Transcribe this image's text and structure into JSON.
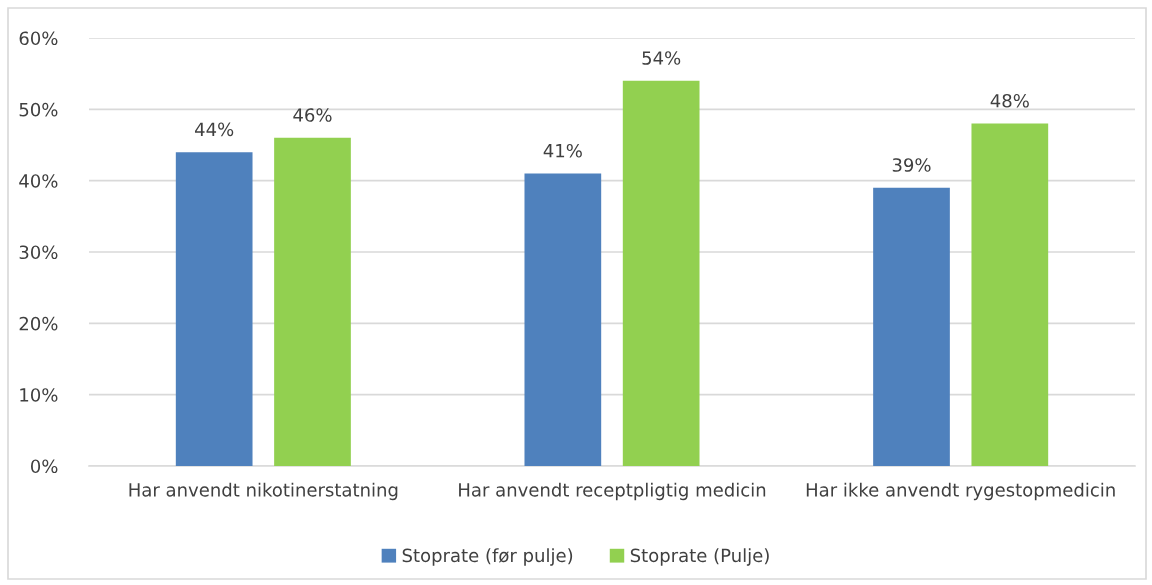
{
  "chart_data": {
    "type": "bar",
    "categories": [
      "Har anvendt nikotinerstatning",
      "Har anvendt receptpligtig medicin",
      "Har ikke anvendt rygestopmedicin"
    ],
    "series": [
      {
        "name": "Stoprate (før pulje)",
        "color": "#4f81bd",
        "values": [
          44,
          41,
          39
        ],
        "value_labels": [
          "44%",
          "41%",
          "39%"
        ]
      },
      {
        "name": "Stoprate (Pulje)",
        "color": "#92d050",
        "values": [
          46,
          54,
          48
        ],
        "value_labels": [
          "46%",
          "54%",
          "48%"
        ]
      }
    ],
    "ylim": [
      0,
      60
    ],
    "yticks": [
      {
        "value": 0,
        "label": "0%"
      },
      {
        "value": 10,
        "label": "10%"
      },
      {
        "value": 20,
        "label": "20%"
      },
      {
        "value": 30,
        "label": "30%"
      },
      {
        "value": 40,
        "label": "40%"
      },
      {
        "value": 50,
        "label": "50%"
      },
      {
        "value": 60,
        "label": "60%"
      }
    ],
    "grid": "y",
    "legend": "bottom"
  }
}
